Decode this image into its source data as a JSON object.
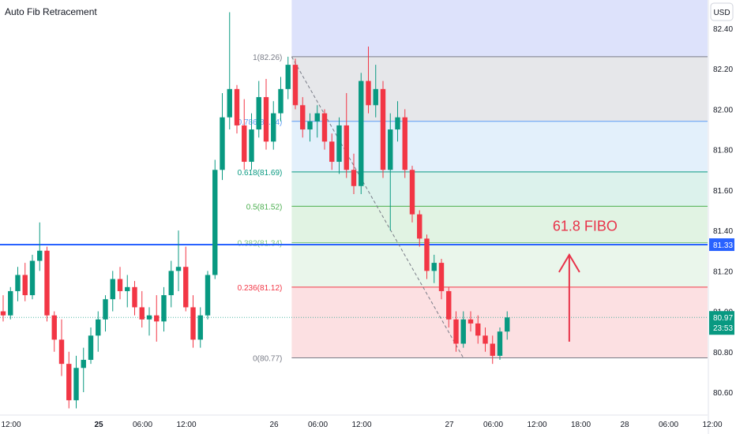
{
  "header": {
    "title": "Auto Fib Retracement",
    "currency_button": "USD"
  },
  "colors": {
    "up": "#089981",
    "down": "#f23645",
    "blue_line": "#2962ff",
    "annotation": "#e8334a",
    "dashed": "#787b86"
  },
  "chart_data": {
    "type": "candlestick",
    "title": "Auto Fib Retracement",
    "y_axis": {
      "ticks": [
        "80.60",
        "80.80",
        "81.00",
        "81.20",
        "81.40",
        "81.60",
        "81.80",
        "82.00",
        "82.20",
        "82.40"
      ],
      "range": [
        80.5,
        82.55
      ]
    },
    "x_axis": {
      "ticks": [
        {
          "t": 0,
          "label": "12:00",
          "bold": false
        },
        {
          "t": 12,
          "label": "25",
          "bold": true
        },
        {
          "t": 18,
          "label": "06:00",
          "bold": false
        },
        {
          "t": 24,
          "label": "12:00",
          "bold": false
        },
        {
          "t": 36,
          "label": "26",
          "bold": false
        },
        {
          "t": 42,
          "label": "06:00",
          "bold": false
        },
        {
          "t": 48,
          "label": "12:00",
          "bold": false
        },
        {
          "t": 60,
          "label": "27",
          "bold": false
        },
        {
          "t": 66,
          "label": "06:00",
          "bold": false
        },
        {
          "t": 72,
          "label": "12:00",
          "bold": false
        },
        {
          "t": 78,
          "label": "18:00",
          "bold": false
        },
        {
          "t": 84,
          "label": "28",
          "bold": false
        },
        {
          "t": 90,
          "label": "06:00",
          "bold": false
        },
        {
          "t": 96,
          "label": "12:00",
          "bold": false
        }
      ]
    },
    "fib_levels": [
      {
        "ratio": "1",
        "price": 82.26,
        "label": "1(82.26)",
        "color": "#787b86",
        "fill": "#e6e7ea"
      },
      {
        "ratio": "0.786",
        "price": 81.94,
        "label": "0.786(81.94)",
        "color": "#5b9cf6",
        "fill": "#e3f0fb"
      },
      {
        "ratio": "0.618",
        "price": 81.69,
        "label": "0.618(81.69)",
        "color": "#089981",
        "fill": "#dcf2ec"
      },
      {
        "ratio": "0.5",
        "price": 81.52,
        "label": "0.5(81.52)",
        "color": "#4caf50",
        "fill": "#e1f3e3"
      },
      {
        "ratio": "0.382",
        "price": 81.34,
        "label": "0.382(81.34)",
        "color": "#81c784",
        "fill": "#eaf6eb"
      },
      {
        "ratio": "0.236",
        "price": 81.12,
        "label": "0.236(81.12)",
        "color": "#f23645",
        "fill": "#fce0e2"
      },
      {
        "ratio": "0",
        "price": 80.77,
        "label": "0(80.77)",
        "color": "#787b86",
        "fill": null
      }
    ],
    "extension_top_fill": "#dde2fb",
    "fib_start_t": 39.5,
    "horizontal_line": {
      "price": 81.33,
      "label": "81.33"
    },
    "current_price": {
      "price": 80.97,
      "label": "80.97",
      "countdown": "23:53"
    },
    "trend_line": {
      "from": {
        "t": 39.5,
        "price": 82.26
      },
      "to": {
        "t": 63,
        "price": 80.77
      }
    },
    "annotation": {
      "text": "61.8 FIBO",
      "arrow_from": 80.85,
      "arrow_to": 81.28,
      "t": 77.5
    },
    "candles": [
      [
        81.0,
        81.08,
        80.95,
        80.98
      ],
      [
        80.98,
        81.12,
        80.96,
        81.1
      ],
      [
        81.1,
        81.22,
        81.05,
        81.18
      ],
      [
        81.18,
        81.24,
        81.05,
        81.08
      ],
      [
        81.08,
        81.28,
        81.06,
        81.25
      ],
      [
        81.25,
        81.44,
        81.2,
        81.3
      ],
      [
        81.3,
        81.32,
        80.95,
        80.98
      ],
      [
        80.98,
        81.0,
        80.8,
        80.86
      ],
      [
        80.86,
        80.96,
        80.68,
        80.74
      ],
      [
        80.74,
        80.8,
        80.52,
        80.56
      ],
      [
        80.56,
        80.78,
        80.52,
        80.72
      ],
      [
        80.72,
        80.82,
        80.6,
        80.76
      ],
      [
        80.76,
        80.92,
        80.74,
        80.88
      ],
      [
        80.88,
        81.0,
        80.8,
        80.96
      ],
      [
        80.96,
        81.08,
        80.9,
        81.06
      ],
      [
        81.06,
        81.2,
        81.0,
        81.16
      ],
      [
        81.16,
        81.22,
        81.06,
        81.1
      ],
      [
        81.1,
        81.18,
        81.02,
        81.12
      ],
      [
        81.12,
        81.15,
        80.98,
        81.02
      ],
      [
        81.02,
        81.1,
        80.92,
        80.96
      ],
      [
        80.96,
        81.02,
        80.88,
        80.98
      ],
      [
        80.98,
        81.08,
        80.85,
        80.95
      ],
      [
        80.95,
        81.12,
        80.9,
        81.08
      ],
      [
        81.08,
        81.25,
        81.02,
        81.2
      ],
      [
        81.2,
        81.4,
        81.1,
        81.22
      ],
      [
        81.22,
        81.32,
        81.0,
        81.02
      ],
      [
        81.02,
        81.08,
        80.82,
        80.86
      ],
      [
        80.86,
        81.02,
        80.82,
        80.98
      ],
      [
        80.98,
        81.2,
        80.96,
        81.18
      ],
      [
        81.18,
        81.75,
        81.16,
        81.7
      ],
      [
        81.7,
        82.08,
        81.65,
        81.96
      ],
      [
        81.96,
        82.48,
        81.9,
        82.1
      ],
      [
        82.1,
        82.12,
        81.88,
        81.92
      ],
      [
        81.92,
        82.05,
        81.7,
        81.74
      ],
      [
        81.74,
        81.98,
        81.7,
        81.9
      ],
      [
        81.9,
        82.14,
        81.86,
        82.06
      ],
      [
        82.06,
        82.15,
        81.8,
        81.84
      ],
      [
        81.84,
        82.04,
        81.8,
        81.98
      ],
      [
        81.98,
        82.16,
        81.94,
        82.1
      ],
      [
        82.1,
        82.26,
        82.05,
        82.22
      ],
      [
        82.22,
        82.25,
        82.0,
        82.02
      ],
      [
        82.02,
        82.06,
        81.86,
        81.9
      ],
      [
        81.9,
        81.98,
        81.84,
        81.94
      ],
      [
        81.94,
        82.02,
        81.86,
        81.98
      ],
      [
        81.98,
        82.0,
        81.8,
        81.84
      ],
      [
        81.84,
        81.88,
        81.7,
        81.74
      ],
      [
        81.74,
        81.96,
        81.68,
        81.92
      ],
      [
        81.92,
        82.08,
        81.66,
        81.7
      ],
      [
        81.7,
        81.78,
        81.58,
        81.62
      ],
      [
        81.62,
        82.18,
        81.58,
        82.14
      ],
      [
        82.14,
        82.31,
        81.98,
        82.02
      ],
      [
        82.02,
        82.22,
        81.96,
        82.1
      ],
      [
        82.1,
        82.14,
        81.66,
        81.7
      ],
      [
        81.7,
        81.98,
        81.4,
        81.9
      ],
      [
        81.9,
        82.04,
        81.84,
        81.96
      ],
      [
        81.96,
        82.0,
        81.66,
        81.7
      ],
      [
        81.7,
        81.72,
        81.44,
        81.48
      ],
      [
        81.48,
        81.5,
        81.32,
        81.36
      ],
      [
        81.36,
        81.38,
        81.16,
        81.2
      ],
      [
        81.2,
        81.28,
        81.14,
        81.24
      ],
      [
        81.24,
        81.26,
        81.06,
        81.1
      ],
      [
        81.1,
        81.12,
        80.92,
        80.96
      ],
      [
        80.96,
        81.0,
        80.8,
        80.84
      ],
      [
        80.84,
        81.0,
        80.82,
        80.96
      ],
      [
        80.96,
        81.0,
        80.9,
        80.94
      ],
      [
        80.94,
        80.98,
        80.84,
        80.88
      ],
      [
        80.88,
        80.92,
        80.8,
        80.84
      ],
      [
        80.84,
        80.88,
        80.74,
        80.78
      ],
      [
        80.78,
        80.92,
        80.76,
        80.9
      ],
      [
        80.9,
        81.0,
        80.86,
        80.97
      ]
    ]
  }
}
